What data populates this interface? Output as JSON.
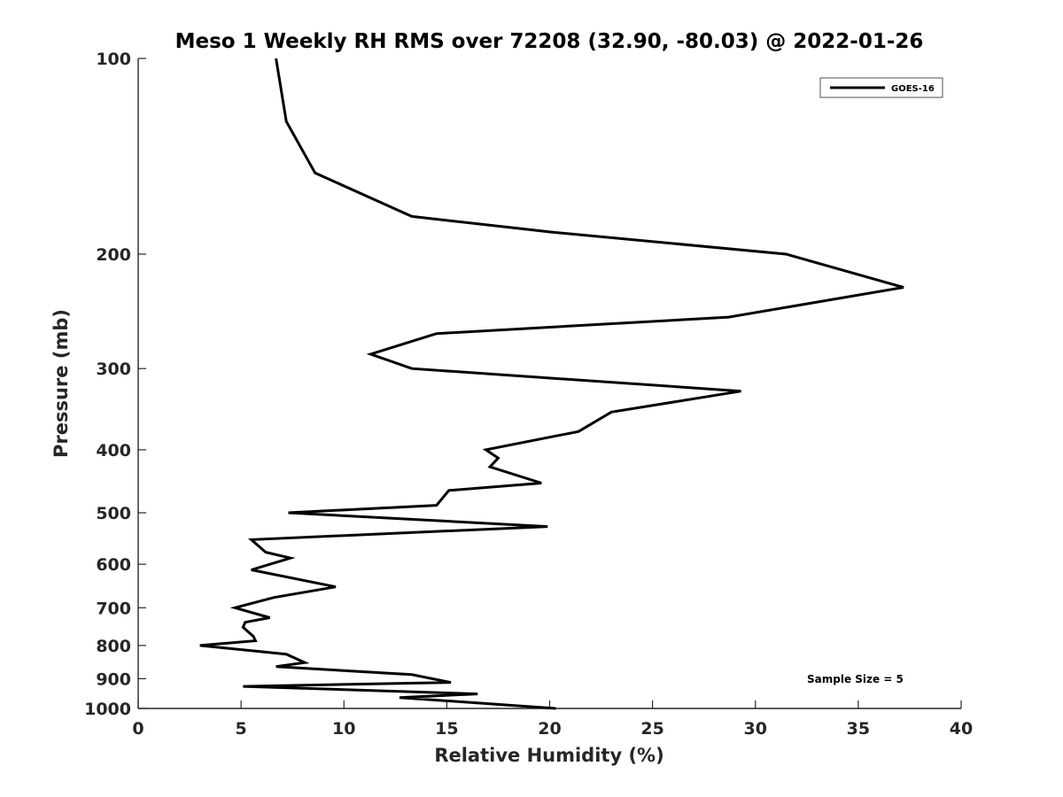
{
  "chart_data": {
    "type": "line",
    "title": "Meso 1 Weekly RH RMS over 72208 (32.90, -80.03) @ 2022-01-26",
    "xlabel": "Relative Humidity (%)",
    "ylabel": "Pressure (mb)",
    "xlim": [
      0,
      40
    ],
    "ylim": [
      100,
      1000
    ],
    "y_scale": "log",
    "y_reversed": true,
    "x_ticks": [
      0,
      5,
      10,
      15,
      20,
      25,
      30,
      35,
      40
    ],
    "x_tick_labels": [
      "0",
      "5",
      "10",
      "15",
      "20",
      "25",
      "30",
      "35",
      "40"
    ],
    "y_ticks": [
      100,
      200,
      300,
      400,
      500,
      600,
      700,
      800,
      900,
      1000
    ],
    "y_tick_labels": [
      "100",
      "200",
      "300",
      "400",
      "500",
      "600",
      "700",
      "800",
      "900",
      "1000"
    ],
    "grid": false,
    "legend": {
      "position": "top-right",
      "entries": [
        "GOES-16"
      ]
    },
    "annotation": "Sample Size = 5",
    "series": [
      {
        "name": "GOES-16",
        "color": "#000000",
        "x": [
          6.7,
          7.2,
          8.6,
          13.3,
          20.1,
          31.5,
          37.2,
          28.7,
          14.5,
          11.3,
          13.3,
          29.3,
          23.0,
          21.4,
          16.9,
          17.5,
          17.1,
          19.6,
          15.1,
          14.5,
          7.3,
          19.9,
          5.5,
          6.2,
          7.4,
          5.5,
          9.6,
          6.6,
          4.7,
          6.4,
          5.2,
          5.1,
          5.6,
          5.7,
          3.0,
          7.2,
          8.1,
          6.7,
          13.3,
          15.2,
          5.1,
          16.5,
          12.7,
          20.3
        ],
        "y": [
          100,
          125,
          150,
          175,
          185,
          200,
          225,
          250,
          265,
          285,
          300,
          325,
          350,
          375,
          400,
          412,
          425,
          450,
          462,
          487,
          500,
          525,
          550,
          575,
          587,
          612,
          650,
          675,
          700,
          725,
          737,
          750,
          775,
          787,
          800,
          825,
          850,
          862,
          887,
          912,
          925,
          950,
          962,
          1000
        ]
      }
    ]
  }
}
